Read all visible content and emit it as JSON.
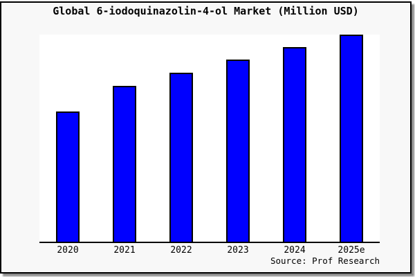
{
  "window": {
    "background_color": "#f8f8f8",
    "border_color": "#000000"
  },
  "chart_data": {
    "type": "bar",
    "title": "Global 6-iodoquinazolin-4-ol Market (Million USD)",
    "categories": [
      "2020",
      "2021",
      "2022",
      "2023",
      "2024",
      "2025e"
    ],
    "values": [
      63,
      75.3,
      81.7,
      88,
      94,
      100
    ],
    "value_note": "no y-axis ticks or data labels shown; values are bar heights normalized to tallest bar = 100",
    "xlabel": "",
    "ylabel": "",
    "ylim": [
      0,
      100
    ],
    "grid": false,
    "legend": false,
    "bar_color": "#0000ff",
    "bar_border_color": "#000000",
    "plot_background": "#ffffff",
    "source": "Source: Prof Research"
  }
}
